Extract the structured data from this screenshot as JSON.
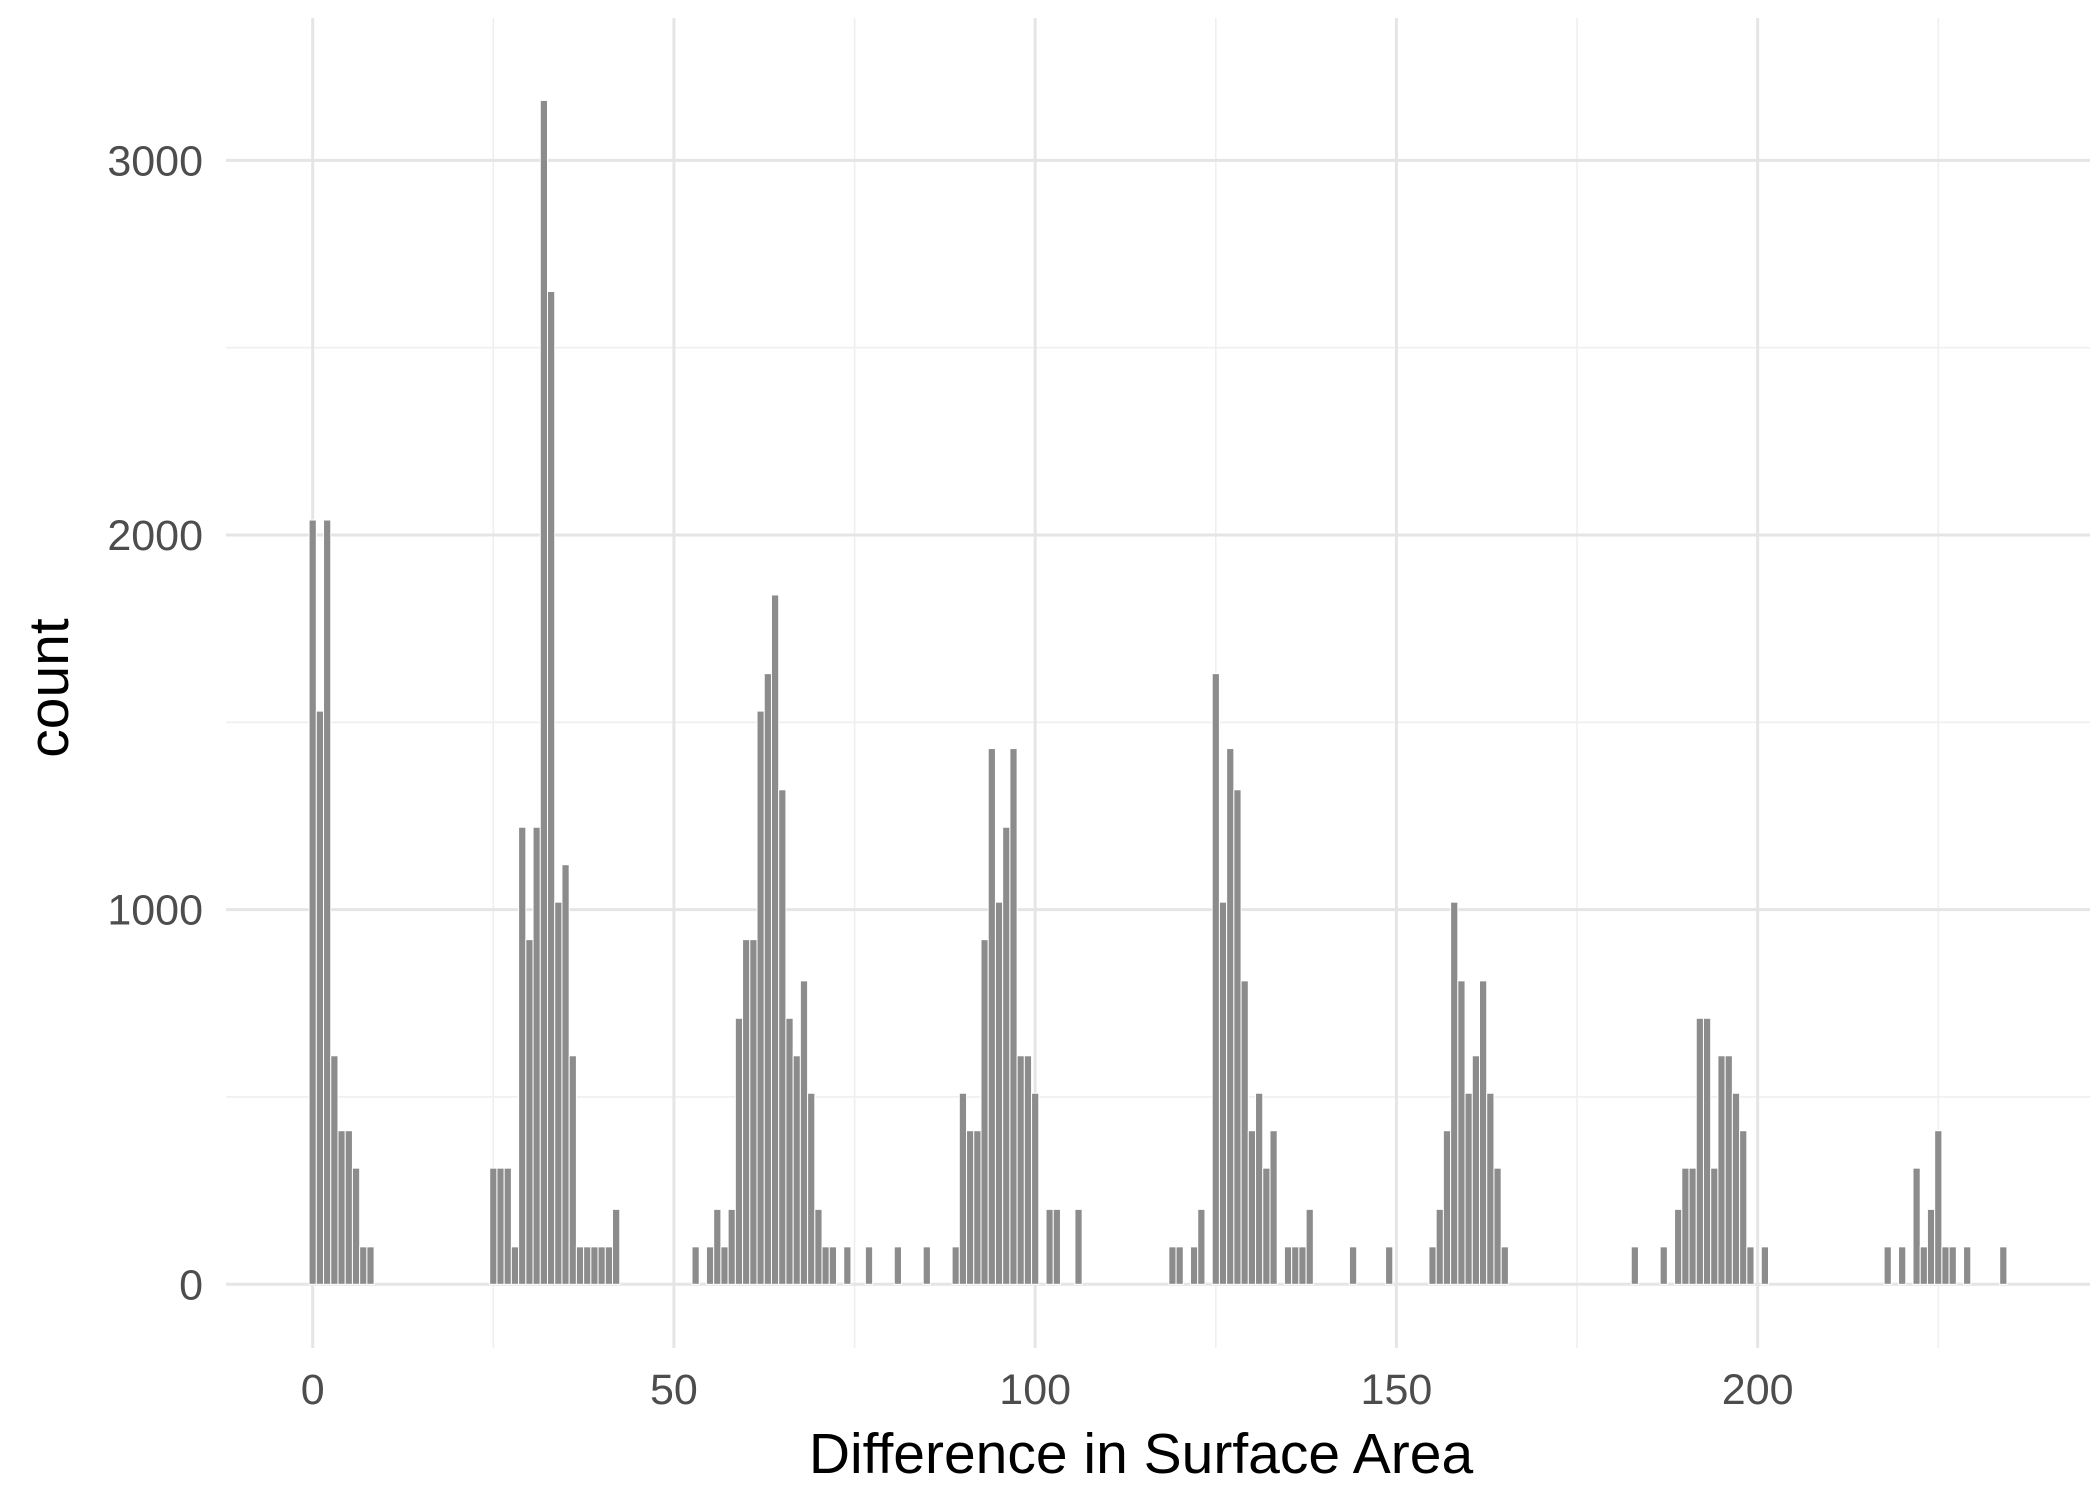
{
  "chart_data": {
    "type": "bar",
    "xlabel": "Difference in Surface Area",
    "ylabel": "count",
    "xlim": [
      -12,
      246
    ],
    "ylim": [
      -170,
      3380
    ],
    "xticks": [
      0,
      50,
      100,
      150,
      200
    ],
    "yticks": [
      0,
      1000,
      2000,
      3000
    ],
    "grid": true,
    "bin_width": 1,
    "bars": [
      {
        "x": 0,
        "y": 2040
      },
      {
        "x": 1,
        "y": 1530
      },
      {
        "x": 2,
        "y": 2040
      },
      {
        "x": 3,
        "y": 610
      },
      {
        "x": 4,
        "y": 410
      },
      {
        "x": 5,
        "y": 410
      },
      {
        "x": 6,
        "y": 310
      },
      {
        "x": 7,
        "y": 100
      },
      {
        "x": 8,
        "y": 100
      },
      {
        "x": 25,
        "y": 310
      },
      {
        "x": 26,
        "y": 310
      },
      {
        "x": 27,
        "y": 310
      },
      {
        "x": 28,
        "y": 100
      },
      {
        "x": 29,
        "y": 1220
      },
      {
        "x": 30,
        "y": 920
      },
      {
        "x": 31,
        "y": 1220
      },
      {
        "x": 32,
        "y": 3160
      },
      {
        "x": 33,
        "y": 2650
      },
      {
        "x": 34,
        "y": 1020
      },
      {
        "x": 35,
        "y": 1120
      },
      {
        "x": 36,
        "y": 610
      },
      {
        "x": 37,
        "y": 100
      },
      {
        "x": 38,
        "y": 100
      },
      {
        "x": 39,
        "y": 100
      },
      {
        "x": 40,
        "y": 100
      },
      {
        "x": 41,
        "y": 100
      },
      {
        "x": 42,
        "y": 200
      },
      {
        "x": 53,
        "y": 100
      },
      {
        "x": 55,
        "y": 100
      },
      {
        "x": 56,
        "y": 200
      },
      {
        "x": 57,
        "y": 100
      },
      {
        "x": 58,
        "y": 200
      },
      {
        "x": 59,
        "y": 710
      },
      {
        "x": 60,
        "y": 920
      },
      {
        "x": 61,
        "y": 920
      },
      {
        "x": 62,
        "y": 1530
      },
      {
        "x": 63,
        "y": 1630
      },
      {
        "x": 64,
        "y": 1840
      },
      {
        "x": 65,
        "y": 1320
      },
      {
        "x": 66,
        "y": 710
      },
      {
        "x": 67,
        "y": 610
      },
      {
        "x": 68,
        "y": 810
      },
      {
        "x": 69,
        "y": 510
      },
      {
        "x": 70,
        "y": 200
      },
      {
        "x": 71,
        "y": 100
      },
      {
        "x": 72,
        "y": 100
      },
      {
        "x": 74,
        "y": 100
      },
      {
        "x": 77,
        "y": 100
      },
      {
        "x": 81,
        "y": 100
      },
      {
        "x": 85,
        "y": 100
      },
      {
        "x": 89,
        "y": 100
      },
      {
        "x": 90,
        "y": 510
      },
      {
        "x": 91,
        "y": 410
      },
      {
        "x": 92,
        "y": 410
      },
      {
        "x": 93,
        "y": 920
      },
      {
        "x": 94,
        "y": 1430
      },
      {
        "x": 95,
        "y": 1020
      },
      {
        "x": 96,
        "y": 1220
      },
      {
        "x": 97,
        "y": 1430
      },
      {
        "x": 98,
        "y": 610
      },
      {
        "x": 99,
        "y": 610
      },
      {
        "x": 100,
        "y": 510
      },
      {
        "x": 102,
        "y": 200
      },
      {
        "x": 103,
        "y": 200
      },
      {
        "x": 106,
        "y": 200
      },
      {
        "x": 119,
        "y": 100
      },
      {
        "x": 120,
        "y": 100
      },
      {
        "x": 122,
        "y": 100
      },
      {
        "x": 123,
        "y": 200
      },
      {
        "x": 125,
        "y": 1630
      },
      {
        "x": 126,
        "y": 1020
      },
      {
        "x": 127,
        "y": 1430
      },
      {
        "x": 128,
        "y": 1320
      },
      {
        "x": 129,
        "y": 810
      },
      {
        "x": 130,
        "y": 410
      },
      {
        "x": 131,
        "y": 510
      },
      {
        "x": 132,
        "y": 310
      },
      {
        "x": 133,
        "y": 410
      },
      {
        "x": 135,
        "y": 100
      },
      {
        "x": 136,
        "y": 100
      },
      {
        "x": 137,
        "y": 100
      },
      {
        "x": 138,
        "y": 200
      },
      {
        "x": 144,
        "y": 100
      },
      {
        "x": 149,
        "y": 100
      },
      {
        "x": 155,
        "y": 100
      },
      {
        "x": 156,
        "y": 200
      },
      {
        "x": 157,
        "y": 410
      },
      {
        "x": 158,
        "y": 1020
      },
      {
        "x": 159,
        "y": 810
      },
      {
        "x": 160,
        "y": 510
      },
      {
        "x": 161,
        "y": 610
      },
      {
        "x": 162,
        "y": 810
      },
      {
        "x": 163,
        "y": 510
      },
      {
        "x": 164,
        "y": 310
      },
      {
        "x": 165,
        "y": 100
      },
      {
        "x": 183,
        "y": 100
      },
      {
        "x": 187,
        "y": 100
      },
      {
        "x": 189,
        "y": 200
      },
      {
        "x": 190,
        "y": 310
      },
      {
        "x": 191,
        "y": 310
      },
      {
        "x": 192,
        "y": 710
      },
      {
        "x": 193,
        "y": 710
      },
      {
        "x": 194,
        "y": 310
      },
      {
        "x": 195,
        "y": 610
      },
      {
        "x": 196,
        "y": 610
      },
      {
        "x": 197,
        "y": 510
      },
      {
        "x": 198,
        "y": 410
      },
      {
        "x": 199,
        "y": 100
      },
      {
        "x": 201,
        "y": 100
      },
      {
        "x": 218,
        "y": 100
      },
      {
        "x": 220,
        "y": 100
      },
      {
        "x": 222,
        "y": 310
      },
      {
        "x": 223,
        "y": 100
      },
      {
        "x": 224,
        "y": 200
      },
      {
        "x": 225,
        "y": 410
      },
      {
        "x": 226,
        "y": 100
      },
      {
        "x": 227,
        "y": 100
      },
      {
        "x": 229,
        "y": 100
      },
      {
        "x": 234,
        "y": 100
      }
    ]
  }
}
